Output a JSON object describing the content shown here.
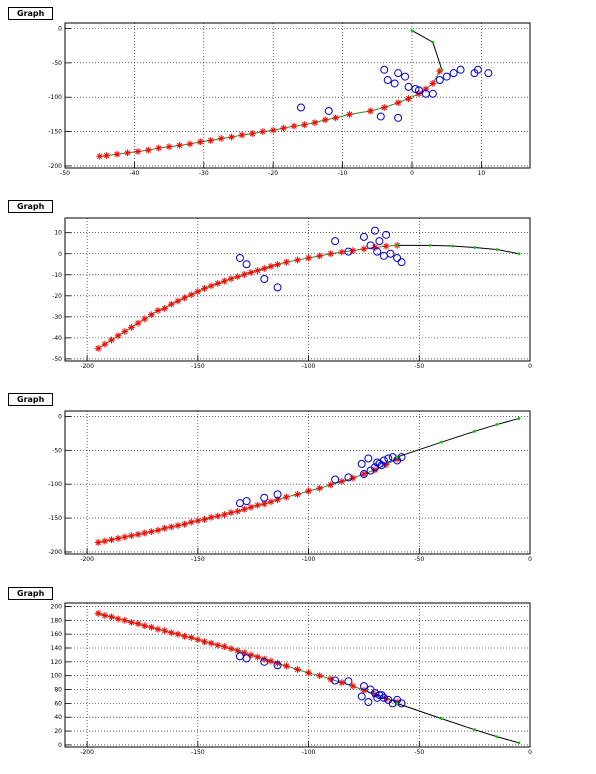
{
  "graph_label": "Graph",
  "chart_data": [
    {
      "type": "scatter",
      "title": "Graph",
      "xlim": [
        -50,
        17
      ],
      "ylim": [
        -203,
        8
      ],
      "xticks": [
        -50,
        -40,
        -30,
        -20,
        -10,
        0,
        10
      ],
      "yticks": [
        0,
        -50,
        -100,
        -150,
        -200
      ],
      "grid": true,
      "series": [
        {
          "marker": "star",
          "color": "#ff0000",
          "line": "#2a8a2a",
          "x": [
            -45,
            -44,
            -42.5,
            -41,
            -39.5,
            -38,
            -36.5,
            -35,
            -33.5,
            -32,
            -30.5,
            -29,
            -27.5,
            -26,
            -24.5,
            -23,
            -21.5,
            -20,
            -18.5,
            -17,
            -15.5,
            -14,
            -12.5,
            -11,
            -9,
            -6,
            -4,
            -2,
            -0.5,
            1,
            2,
            3,
            4
          ],
          "y": [
            -186,
            -185,
            -183,
            -181,
            -179,
            -177,
            -174,
            -172,
            -170,
            -168,
            -165,
            -163,
            -160,
            -158,
            -155,
            -153,
            -150,
            -148,
            -145,
            -142,
            -140,
            -137,
            -133,
            -130,
            -125,
            -120,
            -115,
            -108,
            -102,
            -95,
            -88,
            -80,
            -62
          ]
        },
        {
          "marker": "circle",
          "color": "#0000cc",
          "x": [
            -4,
            -3.5,
            -2,
            -1,
            -2.5,
            -0.5,
            0.5,
            1,
            2,
            4,
            5,
            6,
            7,
            9,
            9.5,
            11,
            3,
            -4.5,
            -16,
            -12,
            -2
          ],
          "y": [
            -60,
            -75,
            -65,
            -70,
            -80,
            -85,
            -88,
            -90,
            -95,
            -75,
            -70,
            -65,
            -60,
            -65,
            -60,
            -65,
            -95,
            -128,
            -115,
            -120,
            -130
          ]
        },
        {
          "marker": "dot",
          "color": "#00cc00",
          "line": "#000000",
          "x": [
            0,
            3,
            4.3
          ],
          "y": [
            -3,
            -20,
            -60
          ]
        }
      ]
    },
    {
      "type": "scatter",
      "title": "Graph",
      "xlim": [
        -210,
        0
      ],
      "ylim": [
        -51,
        17
      ],
      "xticks": [
        -200,
        -150,
        -100,
        -50,
        0
      ],
      "yticks": [
        10,
        0,
        -10,
        -20,
        -30,
        -40,
        -50
      ],
      "grid": true,
      "series": [
        {
          "marker": "star",
          "color": "#ff0000",
          "line": "#2a8a2a",
          "x": [
            -195,
            -192,
            -189,
            -186,
            -183,
            -180,
            -177,
            -174,
            -171,
            -168,
            -165,
            -162,
            -159,
            -156,
            -153,
            -150,
            -147,
            -144,
            -141,
            -138,
            -135,
            -132,
            -129,
            -126,
            -123,
            -120,
            -117,
            -114,
            -110,
            -105,
            -100,
            -95,
            -90,
            -85,
            -80,
            -75,
            -70,
            -65,
            -60
          ],
          "y": [
            -45,
            -43,
            -41,
            -39,
            -37,
            -35,
            -33,
            -31,
            -29,
            -27,
            -26,
            -24,
            -22.5,
            -21,
            -19.5,
            -18,
            -16.5,
            -15.3,
            -14.1,
            -13,
            -11.9,
            -10.9,
            -9.9,
            -8.9,
            -8,
            -7,
            -6,
            -5.1,
            -4,
            -3,
            -2,
            -1,
            0,
            0.8,
            1.5,
            2.3,
            3,
            3.6,
            4
          ]
        },
        {
          "marker": "circle",
          "color": "#0000cc",
          "x": [
            -131,
            -128,
            -120,
            -114,
            -88,
            -82,
            -75,
            -70,
            -68,
            -65,
            -72,
            -69,
            -66,
            -63,
            -60,
            -58
          ],
          "y": [
            -2,
            -5,
            -12,
            -16,
            6,
            1,
            8,
            11,
            6,
            9,
            4,
            1,
            -1,
            0,
            -2,
            -4
          ]
        },
        {
          "marker": "dot",
          "color": "#00cc00",
          "line": "#000000",
          "x": [
            -60,
            -45,
            -35,
            -25,
            -15,
            -5
          ],
          "y": [
            4,
            4,
            3.7,
            3,
            2,
            0
          ]
        }
      ]
    },
    {
      "type": "scatter",
      "title": "Graph",
      "xlim": [
        -210,
        0
      ],
      "ylim": [
        -203,
        8
      ],
      "xticks": [
        -200,
        -150,
        -100,
        -50,
        0
      ],
      "yticks": [
        0,
        -50,
        -100,
        -150,
        -200
      ],
      "grid": true,
      "series": [
        {
          "marker": "star",
          "color": "#ff0000",
          "line": "#2a8a2a",
          "x": [
            -195,
            -192,
            -189,
            -186,
            -183,
            -180,
            -177,
            -174,
            -171,
            -168,
            -165,
            -162,
            -159,
            -156,
            -153,
            -150,
            -147,
            -144,
            -141,
            -138,
            -135,
            -132,
            -129,
            -126,
            -123,
            -120,
            -117,
            -114,
            -110,
            -105,
            -100,
            -95,
            -90,
            -85,
            -80,
            -75,
            -70,
            -65,
            -60
          ],
          "y": [
            -186,
            -184,
            -182,
            -180,
            -178,
            -176,
            -174,
            -172,
            -170,
            -168,
            -165,
            -163,
            -161,
            -159,
            -156,
            -154,
            -152,
            -149,
            -147,
            -145,
            -142,
            -140,
            -137,
            -134,
            -131,
            -129,
            -126,
            -123,
            -119,
            -115,
            -110,
            -106,
            -101,
            -96,
            -91,
            -85,
            -79,
            -71,
            -63
          ]
        },
        {
          "marker": "circle",
          "color": "#0000cc",
          "x": [
            -131,
            -128,
            -120,
            -114,
            -88,
            -82,
            -75,
            -72,
            -70,
            -68,
            -66,
            -64,
            -62,
            -60,
            -58,
            -76,
            -73,
            -69,
            -67
          ],
          "y": [
            -128,
            -125,
            -120,
            -115,
            -93,
            -90,
            -85,
            -80,
            -75,
            -70,
            -65,
            -62,
            -60,
            -65,
            -60,
            -70,
            -62,
            -68,
            -72
          ]
        },
        {
          "marker": "dot",
          "color": "#00cc00",
          "line": "#000000",
          "x": [
            -60,
            -40,
            -25,
            -15,
            -5
          ],
          "y": [
            -60,
            -38,
            -22,
            -12,
            -3
          ]
        }
      ]
    },
    {
      "type": "scatter",
      "title": "Graph",
      "xlim": [
        -210,
        0
      ],
      "ylim": [
        -3,
        205
      ],
      "xticks": [
        -200,
        -150,
        -100,
        -50,
        0
      ],
      "yticks": [
        0,
        20,
        40,
        60,
        80,
        100,
        120,
        140,
        160,
        180,
        200
      ],
      "grid": true,
      "series": [
        {
          "marker": "star",
          "color": "#ff0000",
          "line": "#2a8a2a",
          "x": [
            -195,
            -192,
            -189,
            -186,
            -183,
            -180,
            -177,
            -174,
            -171,
            -168,
            -165,
            -162,
            -159,
            -156,
            -153,
            -150,
            -147,
            -144,
            -141,
            -138,
            -135,
            -132,
            -129,
            -126,
            -123,
            -120,
            -117,
            -114,
            -110,
            -105,
            -100,
            -95,
            -90,
            -85,
            -80,
            -75,
            -70,
            -65,
            -60
          ],
          "y": [
            190,
            187,
            185,
            182,
            180,
            177,
            175,
            172,
            170,
            167,
            165,
            162,
            160,
            157,
            155,
            152,
            149,
            147,
            144,
            142,
            139,
            136,
            133,
            130,
            127,
            124,
            121,
            118,
            114,
            109,
            104,
            100,
            95,
            90,
            85,
            79,
            73,
            67,
            62
          ]
        },
        {
          "marker": "circle",
          "color": "#0000cc",
          "x": [
            -131,
            -128,
            -120,
            -114,
            -88,
            -82,
            -75,
            -72,
            -70,
            -68,
            -66,
            -64,
            -62,
            -60,
            -58,
            -76,
            -73,
            -69,
            -67
          ],
          "y": [
            128,
            125,
            120,
            115,
            93,
            92,
            85,
            80,
            75,
            72,
            68,
            65,
            60,
            65,
            60,
            70,
            62,
            68,
            72
          ]
        },
        {
          "marker": "dot",
          "color": "#00cc00",
          "line": "#000000",
          "x": [
            -60,
            -40,
            -25,
            -15,
            -5
          ],
          "y": [
            60,
            38,
            22,
            12,
            3
          ]
        }
      ]
    }
  ]
}
